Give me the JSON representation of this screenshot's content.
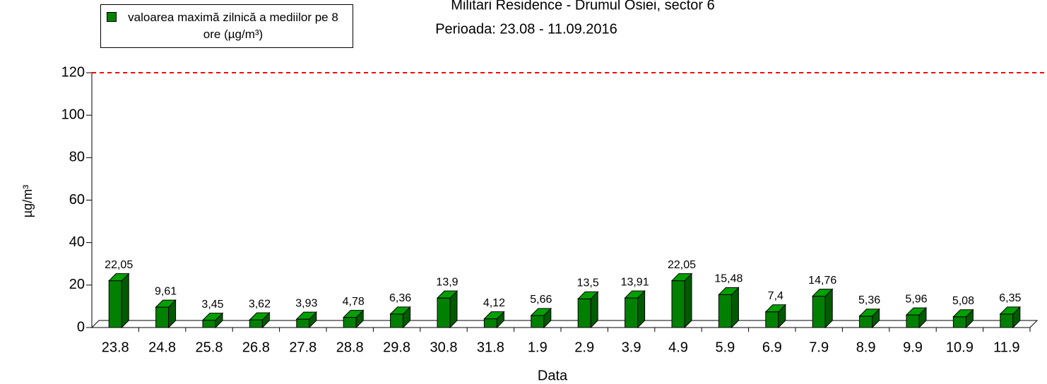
{
  "chart_data": {
    "type": "bar3d",
    "title": "Militari Residence - Drumul Osiei, sector 6",
    "subtitle": "Perioada: 23.08 - 11.09.2016",
    "x_label": "Data",
    "y_label": "µg/m³",
    "categories": [
      "23.8",
      "24.8",
      "25.8",
      "26.8",
      "27.8",
      "28.8",
      "29.8",
      "30.8",
      "31.8",
      "1.9",
      "2.9",
      "3.9",
      "4.9",
      "5.9",
      "6.9",
      "7.9",
      "8.9",
      "9.9",
      "10.9",
      "11.9"
    ],
    "series": [
      {
        "name": "valoarea maximă zilnică a mediilor pe 8 ore (µg/m³)",
        "color": "#008000",
        "values": [
          22.05,
          9.61,
          3.45,
          3.62,
          3.93,
          4.78,
          6.36,
          13.9,
          4.12,
          5.66,
          13.5,
          13.91,
          22.05,
          15.48,
          7.4,
          14.76,
          5.36,
          5.96,
          5.08,
          6.35
        ],
        "value_labels": [
          "22,05",
          "9,61",
          "3,45",
          "3,62",
          "3,93",
          "4,78",
          "6,36",
          "13,9",
          "4,12",
          "5,66",
          "13,5",
          "13,91",
          "22,05",
          "15,48",
          "7,4",
          "14,76",
          "5,36",
          "5,96",
          "5,08",
          "6,35"
        ]
      }
    ],
    "reference_line": {
      "value": 120,
      "color": "#ff0000"
    },
    "ylim": [
      0,
      120
    ],
    "yticks": [
      0,
      20,
      40,
      60,
      80,
      100,
      120
    ]
  }
}
